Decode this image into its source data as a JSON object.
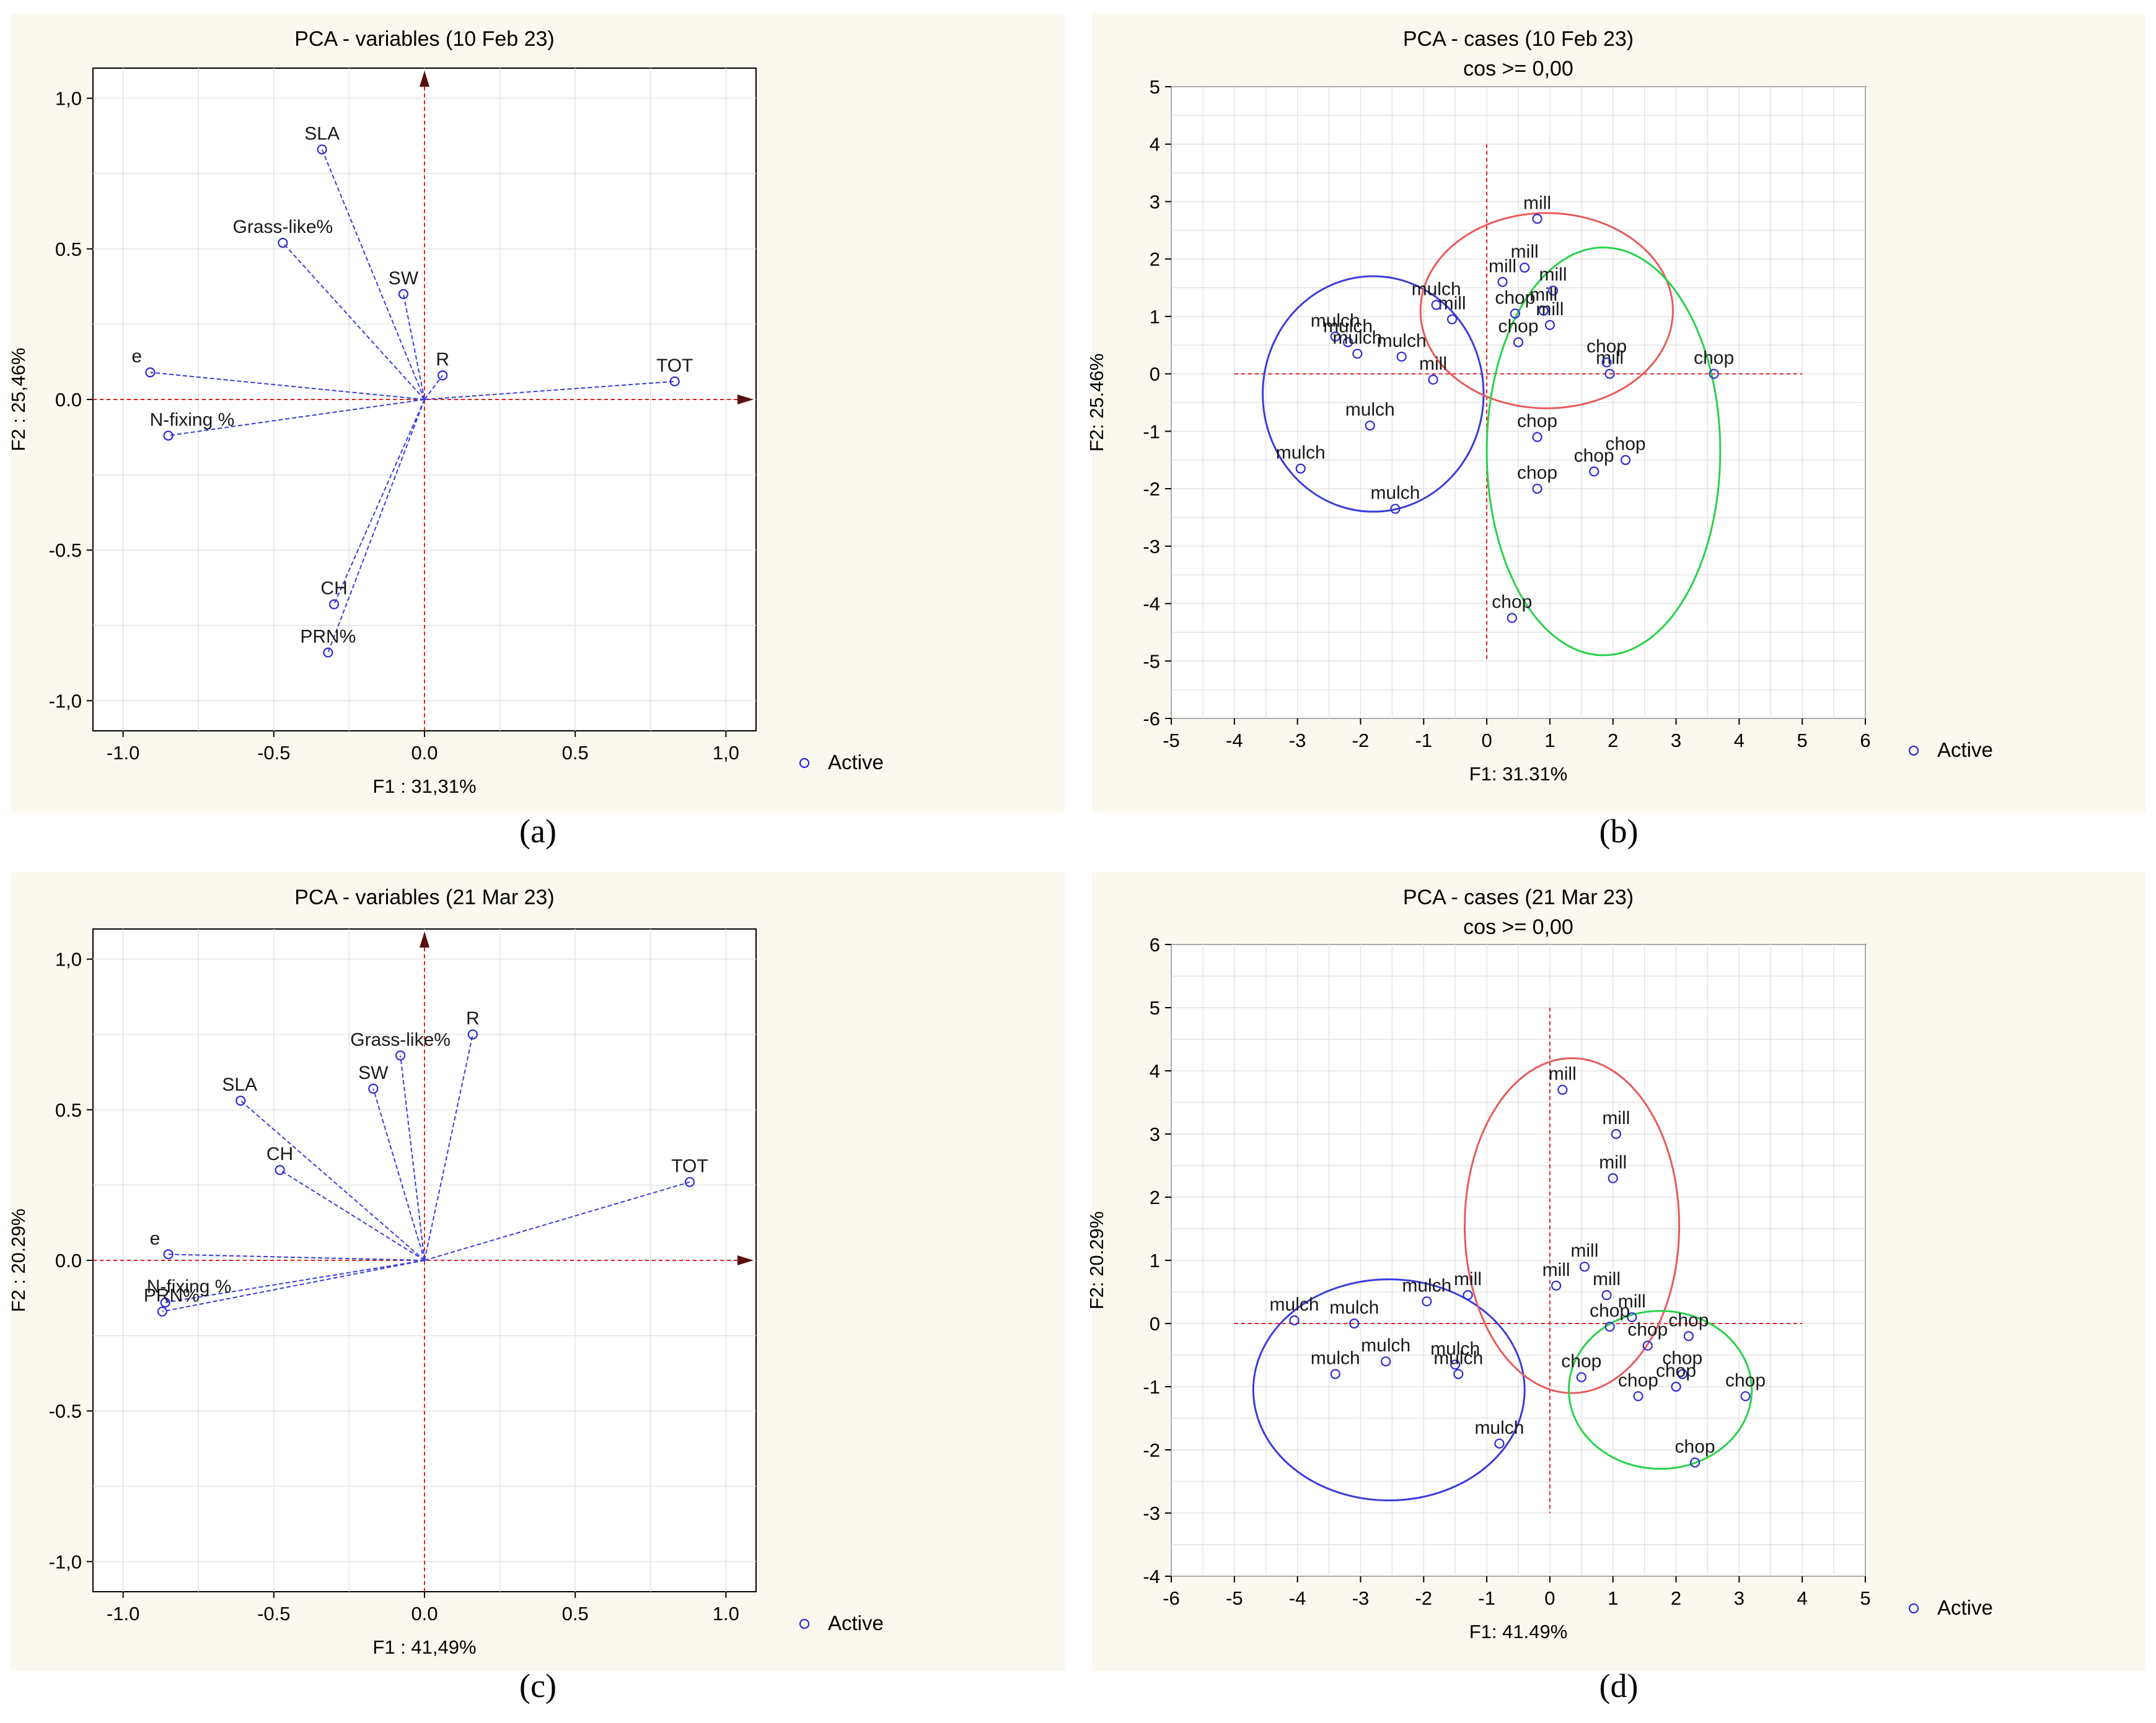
{
  "chart_data": [
    {
      "panel": "a",
      "caption": "(a)",
      "type": "scatter",
      "title": "PCA - variables (10 Feb 23)",
      "xlabel": "F1 : 31,31%",
      "ylabel": "F2 : 25,46%",
      "xlim": [
        -1.1,
        1.1
      ],
      "ylim": [
        -1.1,
        1.1
      ],
      "xticks": [
        -1.0,
        -0.5,
        0.0,
        0.5,
        1.0
      ],
      "yticks": [
        -1.0,
        -0.5,
        0.0,
        0.5,
        1.0
      ],
      "xtick_labels": [
        "-1.0",
        "-0.5",
        "0.0",
        "0.5",
        "1,0"
      ],
      "ytick_labels": [
        "-1,0",
        "-0.5",
        "0.0",
        "0.5",
        "1,0"
      ],
      "vectors": true,
      "legend": "Active",
      "legend_position": "bottom-right",
      "series": [
        {
          "points": [
            {
              "label": "SLA",
              "x": -0.34,
              "y": 0.83
            },
            {
              "label": "Grass-like%",
              "x": -0.47,
              "y": 0.52
            },
            {
              "label": "SW",
              "x": -0.07,
              "y": 0.35
            },
            {
              "label": "R",
              "x": 0.06,
              "y": 0.08
            },
            {
              "label": "TOT",
              "x": 0.83,
              "y": 0.06
            },
            {
              "label": "e",
              "x": -0.91,
              "y": 0.09
            },
            {
              "label": "N-fixing %",
              "x": -0.85,
              "y": -0.12
            },
            {
              "label": "CH",
              "x": -0.3,
              "y": -0.68
            },
            {
              "label": "PRN%",
              "x": -0.32,
              "y": -0.84
            }
          ]
        }
      ]
    },
    {
      "panel": "b",
      "caption": "(b)",
      "type": "scatter",
      "title": "PCA - cases (10 Feb 23)",
      "subtitle": "cos >= 0,00",
      "xlabel": "F1: 31.31%",
      "ylabel": "F2: 25.46%",
      "xlim": [
        -5,
        6
      ],
      "ylim": [
        -6,
        5
      ],
      "xticks": [
        -5,
        -4,
        -3,
        -2,
        -1,
        0,
        1,
        2,
        3,
        4,
        5,
        6
      ],
      "yticks": [
        -6,
        -5,
        -4,
        -3,
        -2,
        -1,
        0,
        1,
        2,
        3,
        4,
        5
      ],
      "legend": "Active",
      "legend_position": "bottom-right",
      "groups": [
        {
          "label": "mulch",
          "color": "#3b3bdc",
          "ellipse": {
            "cx": -1.8,
            "cy": -0.35,
            "rx": 1.75,
            "ry": 2.05
          }
        },
        {
          "label": "mill",
          "color": "#e85a5a",
          "ellipse": {
            "cx": 0.95,
            "cy": 1.1,
            "rx": 2.0,
            "ry": 1.7
          }
        },
        {
          "label": "chop",
          "color": "#28d24a",
          "ellipse": {
            "cx": 1.85,
            "cy": -1.35,
            "rx": 1.85,
            "ry": 3.55
          }
        }
      ],
      "series": [
        {
          "points": [
            {
              "label": "mill",
              "x": 0.8,
              "y": 2.7
            },
            {
              "label": "mill",
              "x": 0.6,
              "y": 1.85
            },
            {
              "label": "mill",
              "x": 0.25,
              "y": 1.6
            },
            {
              "label": "mill",
              "x": 1.05,
              "y": 1.45
            },
            {
              "label": "mill",
              "x": 0.9,
              "y": 1.1
            },
            {
              "label": "mill",
              "x": 1.0,
              "y": 0.85
            },
            {
              "label": "mill",
              "x": -0.55,
              "y": 0.95
            },
            {
              "label": "mill",
              "x": -0.85,
              "y": -0.1
            },
            {
              "label": "mill",
              "x": 1.95,
              "y": 0.0
            },
            {
              "label": "mulch",
              "x": -0.8,
              "y": 1.2
            },
            {
              "label": "mulch",
              "x": -2.4,
              "y": 0.65
            },
            {
              "label": "mulch",
              "x": -2.2,
              "y": 0.55
            },
            {
              "label": "mulch",
              "x": -2.05,
              "y": 0.35
            },
            {
              "label": "mulch",
              "x": -1.35,
              "y": 0.3
            },
            {
              "label": "mulch",
              "x": -1.85,
              "y": -0.9
            },
            {
              "label": "mulch",
              "x": -2.95,
              "y": -1.65
            },
            {
              "label": "mulch",
              "x": -1.45,
              "y": -2.35
            },
            {
              "label": "chop",
              "x": 0.45,
              "y": 1.05
            },
            {
              "label": "chop",
              "x": 0.5,
              "y": 0.55
            },
            {
              "label": "chop",
              "x": 1.9,
              "y": 0.2
            },
            {
              "label": "chop",
              "x": 3.6,
              "y": 0.0
            },
            {
              "label": "chop",
              "x": 0.8,
              "y": -1.1
            },
            {
              "label": "chop",
              "x": 2.2,
              "y": -1.5
            },
            {
              "label": "chop",
              "x": 1.7,
              "y": -1.7
            },
            {
              "label": "chop",
              "x": 0.8,
              "y": -2.0
            },
            {
              "label": "chop",
              "x": 0.4,
              "y": -4.25
            }
          ]
        }
      ]
    },
    {
      "panel": "c",
      "caption": "(c)",
      "type": "scatter",
      "title": "PCA - variables (21 Mar 23)",
      "xlabel": "F1 : 41,49%",
      "ylabel": "F2 : 20.29%",
      "xlim": [
        -1.1,
        1.1
      ],
      "ylim": [
        -1.1,
        1.1
      ],
      "xticks": [
        -1.0,
        -0.5,
        0.0,
        0.5,
        1.0
      ],
      "yticks": [
        -1.0,
        -0.5,
        0.0,
        0.5,
        1.0
      ],
      "xtick_labels": [
        "-1.0",
        "-0.5",
        "0.0",
        "0.5",
        "1.0"
      ],
      "ytick_labels": [
        "-1,0",
        "-0.5",
        "0.0",
        "0.5",
        "1,0"
      ],
      "vectors": true,
      "legend": "Active",
      "legend_position": "bottom-right",
      "series": [
        {
          "points": [
            {
              "label": "R",
              "x": 0.16,
              "y": 0.75
            },
            {
              "label": "Grass-like%",
              "x": -0.08,
              "y": 0.68
            },
            {
              "label": "SW",
              "x": -0.17,
              "y": 0.57
            },
            {
              "label": "SLA",
              "x": -0.61,
              "y": 0.53
            },
            {
              "label": "CH",
              "x": -0.48,
              "y": 0.3
            },
            {
              "label": "TOT",
              "x": 0.88,
              "y": 0.26
            },
            {
              "label": "e",
              "x": -0.85,
              "y": 0.02
            },
            {
              "label": "N-fixing %",
              "x": -0.86,
              "y": -0.14
            },
            {
              "label": "PRN%",
              "x": -0.87,
              "y": -0.17
            }
          ]
        }
      ]
    },
    {
      "panel": "d",
      "caption": "(d)",
      "type": "scatter",
      "title": "PCA - cases (21 Mar 23)",
      "subtitle": "cos >= 0,00",
      "xlabel": "F1: 41.49%",
      "ylabel": "F2: 20.29%",
      "xlim": [
        -6,
        5
      ],
      "ylim": [
        -4,
        6
      ],
      "xticks": [
        -6,
        -5,
        -4,
        -3,
        -2,
        -1,
        0,
        1,
        2,
        3,
        4,
        5
      ],
      "yticks": [
        -4,
        -3,
        -2,
        -1,
        0,
        1,
        2,
        3,
        4,
        5,
        6
      ],
      "legend": "Active",
      "legend_position": "bottom-right",
      "groups": [
        {
          "label": "mulch",
          "color": "#3b3bdc",
          "ellipse": {
            "cx": -2.55,
            "cy": -1.05,
            "rx": 2.15,
            "ry": 1.75
          }
        },
        {
          "label": "mill",
          "color": "#e85a5a",
          "ellipse": {
            "cx": 0.35,
            "cy": 1.55,
            "rx": 1.7,
            "ry": 2.65
          }
        },
        {
          "label": "chop",
          "color": "#28d24a",
          "ellipse": {
            "cx": 1.75,
            "cy": -1.05,
            "rx": 1.45,
            "ry": 1.25
          }
        }
      ],
      "series": [
        {
          "points": [
            {
              "label": "mill",
              "x": 0.2,
              "y": 3.7
            },
            {
              "label": "mill",
              "x": 1.05,
              "y": 3.0
            },
            {
              "label": "mill",
              "x": 1.0,
              "y": 2.3
            },
            {
              "label": "mill",
              "x": 0.55,
              "y": 0.9
            },
            {
              "label": "mill",
              "x": 0.1,
              "y": 0.6
            },
            {
              "label": "mill",
              "x": 0.9,
              "y": 0.45
            },
            {
              "label": "mill",
              "x": 1.3,
              "y": 0.1
            },
            {
              "label": "mill",
              "x": -1.3,
              "y": 0.45
            },
            {
              "label": "mulch",
              "x": -4.05,
              "y": 0.05
            },
            {
              "label": "mulch",
              "x": -3.1,
              "y": 0.0
            },
            {
              "label": "mulch",
              "x": -1.95,
              "y": 0.35
            },
            {
              "label": "mulch",
              "x": -3.4,
              "y": -0.8
            },
            {
              "label": "mulch",
              "x": -2.6,
              "y": -0.6
            },
            {
              "label": "mulch",
              "x": -1.5,
              "y": -0.65
            },
            {
              "label": "mulch",
              "x": -1.45,
              "y": -0.8
            },
            {
              "label": "mulch",
              "x": -0.8,
              "y": -1.9
            },
            {
              "label": "chop",
              "x": 0.95,
              "y": -0.05
            },
            {
              "label": "chop",
              "x": 1.55,
              "y": -0.35
            },
            {
              "label": "chop",
              "x": 2.2,
              "y": -0.2
            },
            {
              "label": "chop",
              "x": 0.5,
              "y": -0.85
            },
            {
              "label": "chop",
              "x": 2.1,
              "y": -0.8
            },
            {
              "label": "chop",
              "x": 1.4,
              "y": -1.15
            },
            {
              "label": "chop",
              "x": 2.0,
              "y": -1.0
            },
            {
              "label": "chop",
              "x": 3.1,
              "y": -1.15
            },
            {
              "label": "chop",
              "x": 2.3,
              "y": -2.2
            }
          ]
        }
      ]
    }
  ]
}
